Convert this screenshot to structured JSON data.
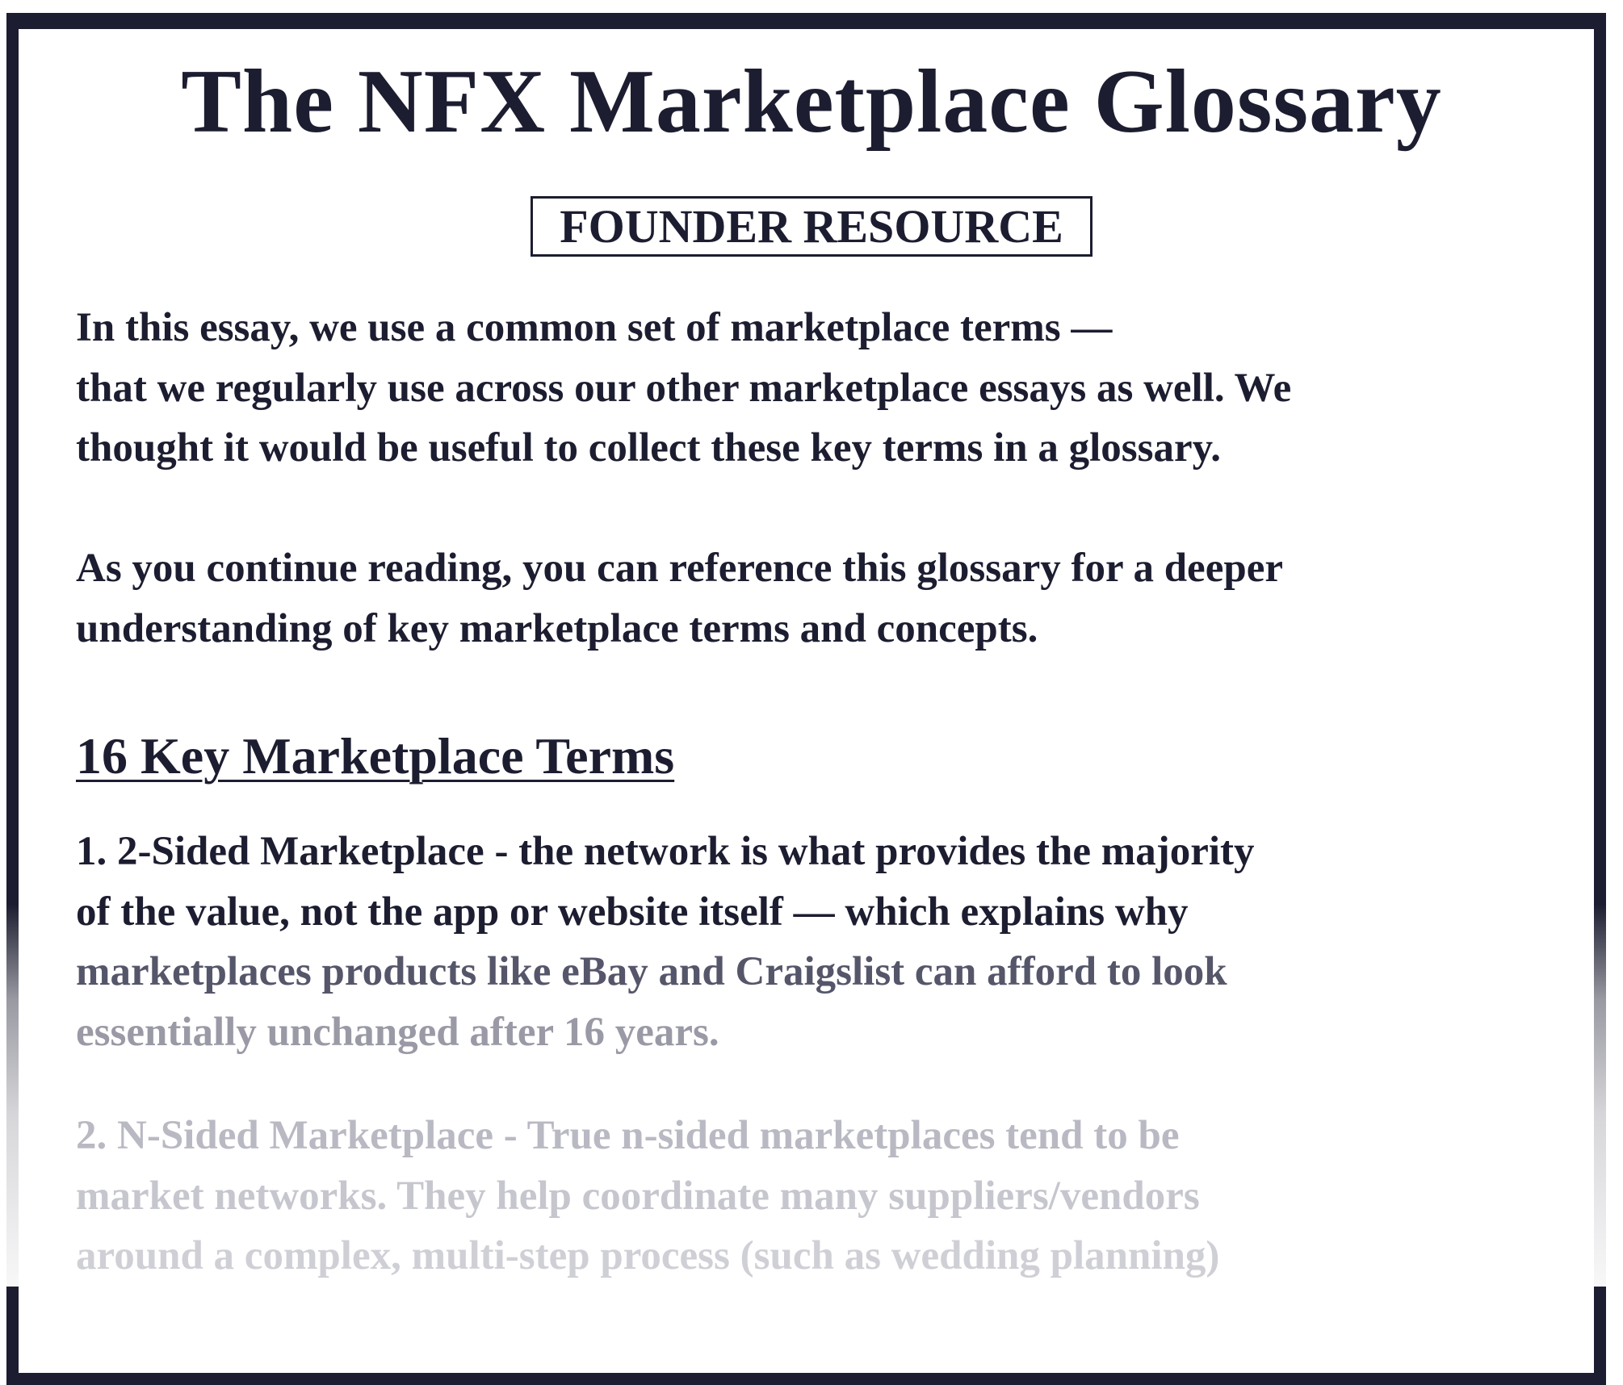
{
  "title": "The NFX Marketplace Glossary",
  "badge": "FOUNDER RESOURCE",
  "intro": {
    "paragraph1": [
      "In this essay, we use a common set of marketplace terms —",
      "that we regularly use across our other marketplace essays as well. We",
      "thought it would be useful to collect these key terms in a glossary."
    ],
    "paragraph2": [
      "As you continue reading, you can reference this glossary for a deeper",
      "understanding of key marketplace terms and concepts."
    ]
  },
  "section_heading": "16 Key Marketplace Terms",
  "terms": [
    {
      "lines": [
        "1. 2-Sided Marketplace - the network is what provides the majority",
        "of the value, not the app or website itself — which explains why",
        "marketplaces products like eBay and Craigslist can afford to look",
        "essentially unchanged after 16 years."
      ]
    },
    {
      "lines": [
        "2. N-Sided Marketplace - True n-sided marketplaces tend to be",
        "market networks. They help coordinate many suppliers/vendors",
        "around a complex, multi-step process (such as wedding planning)"
      ]
    }
  ],
  "colors": {
    "text": "#1c1d30",
    "frame": "#1c1d30",
    "background": "#ffffff"
  }
}
